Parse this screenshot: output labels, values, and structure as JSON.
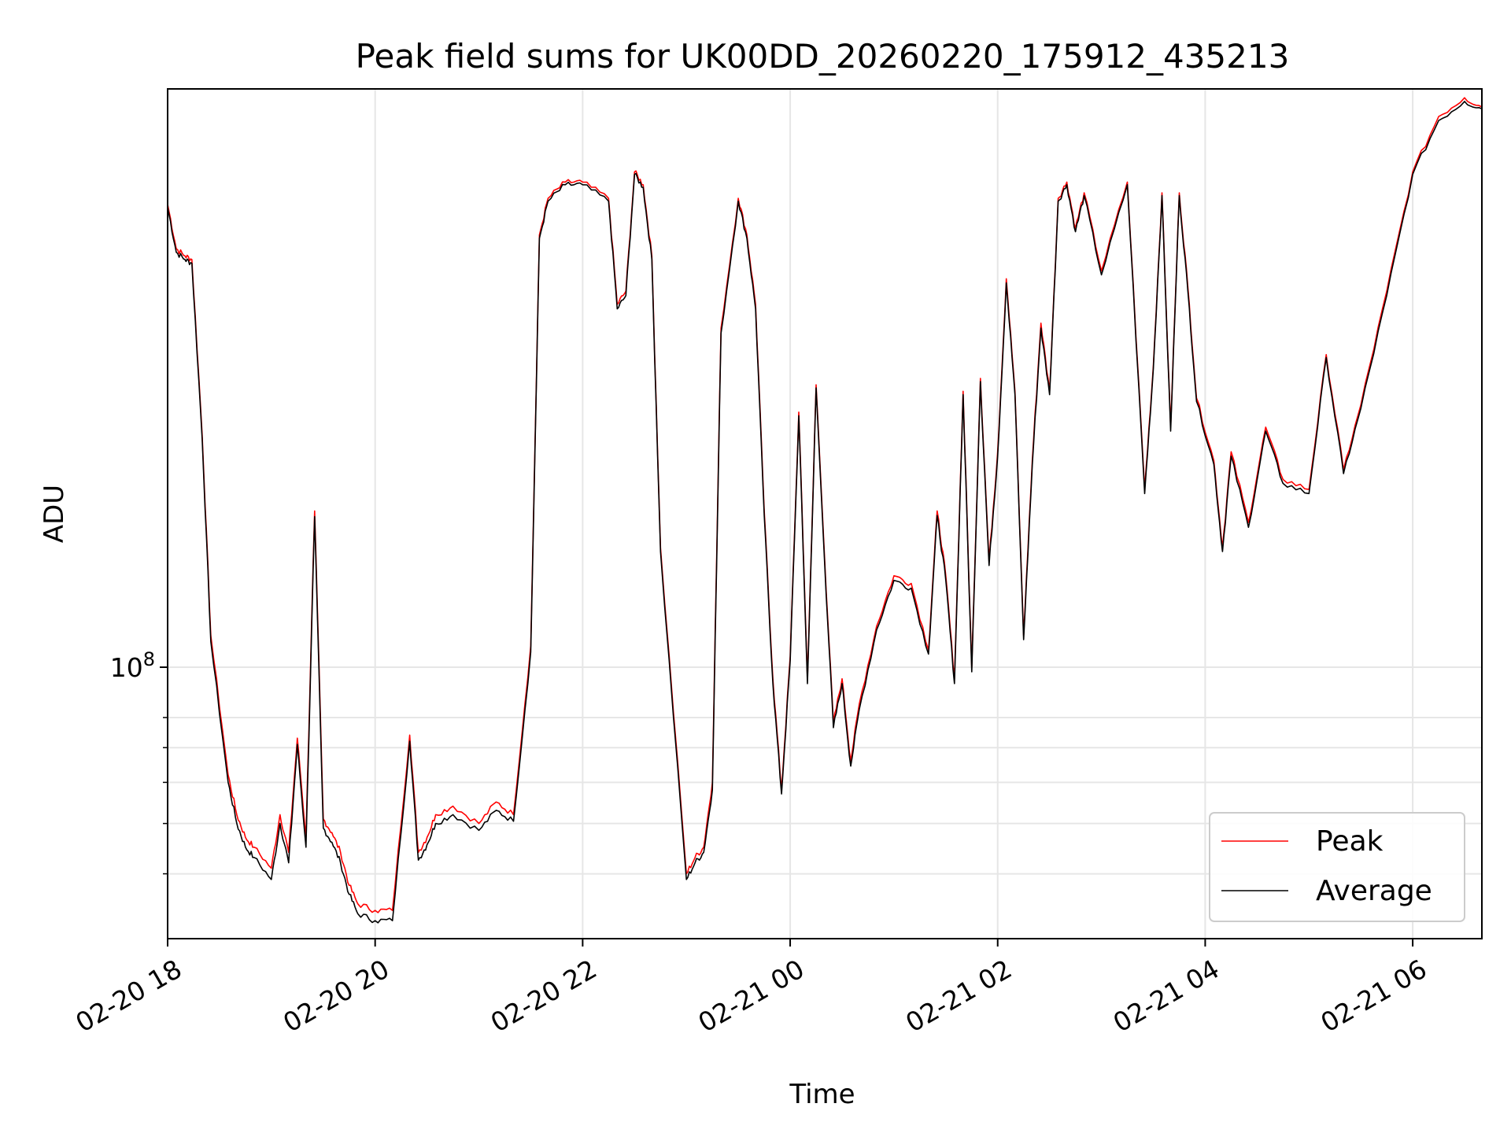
{
  "chart_data": {
    "type": "line",
    "title": "Peak field sums for UK00DD_20260220_175912_435213",
    "xlabel": "Time",
    "ylabel": "ADU",
    "yscale": "log",
    "ylim": [
      30000000,
      1300000000
    ],
    "y_major_tick": {
      "value": 100000000,
      "mantissa": "10",
      "exponent": "8"
    },
    "y_minor_ticks": [
      40000000,
      50000000,
      60000000,
      70000000,
      80000000
    ],
    "xlim": [
      "2026-02-20T18:00",
      "2026-02-21T06:40"
    ],
    "x_ticks": [
      {
        "t": "2026-02-20T18:00",
        "label": "02-20 18"
      },
      {
        "t": "2026-02-20T20:00",
        "label": "02-20 20"
      },
      {
        "t": "2026-02-20T22:00",
        "label": "02-20 22"
      },
      {
        "t": "2026-02-21T00:00",
        "label": "02-21 00"
      },
      {
        "t": "2026-02-21T02:00",
        "label": "02-21 02"
      },
      {
        "t": "2026-02-21T04:00",
        "label": "02-21 04"
      },
      {
        "t": "2026-02-21T06:00",
        "label": "02-21 06"
      }
    ],
    "grid": true,
    "legend_position": "lower-right",
    "series": [
      {
        "name": "Peak",
        "color": "#ff0000",
        "times": [
          "2026-02-20T18:00",
          "2026-02-20T18:05",
          "2026-02-20T18:10",
          "2026-02-20T18:14",
          "2026-02-20T18:20",
          "2026-02-20T18:25",
          "2026-02-20T18:35",
          "2026-02-20T18:40",
          "2026-02-20T18:45",
          "2026-02-20T18:50",
          "2026-02-20T19:00",
          "2026-02-20T19:05",
          "2026-02-20T19:10",
          "2026-02-20T19:15",
          "2026-02-20T19:20",
          "2026-02-20T19:25",
          "2026-02-20T19:30",
          "2026-02-20T19:35",
          "2026-02-20T19:40",
          "2026-02-20T19:45",
          "2026-02-20T19:50",
          "2026-02-20T20:00",
          "2026-02-20T20:10",
          "2026-02-20T20:20",
          "2026-02-20T20:25",
          "2026-02-20T20:30",
          "2026-02-20T20:35",
          "2026-02-20T20:45",
          "2026-02-20T21:00",
          "2026-02-20T21:10",
          "2026-02-20T21:20",
          "2026-02-20T21:30",
          "2026-02-20T21:35",
          "2026-02-20T21:40",
          "2026-02-20T21:50",
          "2026-02-20T22:00",
          "2026-02-20T22:15",
          "2026-02-20T22:20",
          "2026-02-20T22:25",
          "2026-02-20T22:30",
          "2026-02-20T22:35",
          "2026-02-20T22:40",
          "2026-02-20T22:45",
          "2026-02-20T23:00",
          "2026-02-20T23:05",
          "2026-02-20T23:10",
          "2026-02-20T23:15",
          "2026-02-20T23:20",
          "2026-02-20T23:30",
          "2026-02-20T23:35",
          "2026-02-20T23:40",
          "2026-02-20T23:45",
          "2026-02-20T23:50",
          "2026-02-20T23:55",
          "2026-02-21T00:00",
          "2026-02-21T00:05",
          "2026-02-21T00:10",
          "2026-02-21T00:15",
          "2026-02-21T00:20",
          "2026-02-21T00:25",
          "2026-02-21T00:30",
          "2026-02-21T00:35",
          "2026-02-21T00:40",
          "2026-02-21T00:50",
          "2026-02-21T01:00",
          "2026-02-21T01:10",
          "2026-02-21T01:20",
          "2026-02-21T01:25",
          "2026-02-21T01:30",
          "2026-02-21T01:35",
          "2026-02-21T01:40",
          "2026-02-21T01:45",
          "2026-02-21T01:50",
          "2026-02-21T01:55",
          "2026-02-21T02:00",
          "2026-02-21T02:05",
          "2026-02-21T02:10",
          "2026-02-21T02:15",
          "2026-02-21T02:20",
          "2026-02-21T02:25",
          "2026-02-21T02:30",
          "2026-02-21T02:35",
          "2026-02-21T02:40",
          "2026-02-21T02:45",
          "2026-02-21T02:50",
          "2026-02-21T03:00",
          "2026-02-21T03:15",
          "2026-02-21T03:25",
          "2026-02-21T03:30",
          "2026-02-21T03:35",
          "2026-02-21T03:40",
          "2026-02-21T03:45",
          "2026-02-21T03:50",
          "2026-02-21T03:55",
          "2026-02-21T04:05",
          "2026-02-21T04:10",
          "2026-02-21T04:15",
          "2026-02-21T04:25",
          "2026-02-21T04:35",
          "2026-02-21T04:45",
          "2026-02-21T05:00",
          "2026-02-21T05:10",
          "2026-02-21T05:20",
          "2026-02-21T05:30",
          "2026-02-21T05:45",
          "2026-02-21T06:00",
          "2026-02-21T06:15",
          "2026-02-21T06:30",
          "2026-02-21T06:40"
        ],
        "values": [
          780000000,
          640000000,
          620000000,
          610000000,
          280000000,
          115000000,
          62000000,
          52000000,
          47000000,
          45000000,
          41000000,
          52000000,
          44000000,
          73000000,
          47000000,
          200000000,
          51000000,
          48000000,
          44000000,
          38000000,
          35000000,
          34000000,
          34000000,
          74000000,
          44000000,
          47000000,
          52000000,
          54000000,
          50000000,
          55000000,
          52000000,
          110000000,
          680000000,
          800000000,
          860000000,
          860000000,
          800000000,
          500000000,
          530000000,
          900000000,
          850000000,
          620000000,
          170000000,
          40000000,
          43000000,
          45000000,
          60000000,
          450000000,
          800000000,
          680000000,
          500000000,
          200000000,
          95000000,
          58000000,
          105000000,
          310000000,
          95000000,
          350000000,
          160000000,
          78000000,
          95000000,
          66000000,
          85000000,
          120000000,
          150000000,
          145000000,
          108000000,
          200000000,
          150000000,
          95000000,
          340000000,
          100000000,
          360000000,
          160000000,
          260000000,
          560000000,
          340000000,
          115000000,
          250000000,
          460000000,
          340000000,
          800000000,
          860000000,
          700000000,
          820000000,
          580000000,
          860000000,
          220000000,
          380000000,
          820000000,
          290000000,
          820000000,
          540000000,
          330000000,
          250000000,
          170000000,
          260000000,
          190000000,
          290000000,
          230000000,
          220000000,
          400000000,
          240000000,
          320000000,
          530000000,
          900000000,
          1150000000,
          1250000000,
          1200000000
        ],
        "note": "values approximate"
      },
      {
        "name": "Average",
        "color": "#000000",
        "times": [
          "2026-02-20T18:00",
          "2026-02-20T18:05",
          "2026-02-20T18:10",
          "2026-02-20T18:14",
          "2026-02-20T18:20",
          "2026-02-20T18:25",
          "2026-02-20T18:35",
          "2026-02-20T18:40",
          "2026-02-20T18:45",
          "2026-02-20T18:50",
          "2026-02-20T19:00",
          "2026-02-20T19:05",
          "2026-02-20T19:10",
          "2026-02-20T19:15",
          "2026-02-20T19:20",
          "2026-02-20T19:25",
          "2026-02-20T19:30",
          "2026-02-20T19:35",
          "2026-02-20T19:40",
          "2026-02-20T19:45",
          "2026-02-20T19:50",
          "2026-02-20T20:00",
          "2026-02-20T20:10",
          "2026-02-20T20:20",
          "2026-02-20T20:25",
          "2026-02-20T20:30",
          "2026-02-20T20:35",
          "2026-02-20T20:45",
          "2026-02-20T21:00",
          "2026-02-20T21:10",
          "2026-02-20T21:20",
          "2026-02-20T21:30",
          "2026-02-20T21:35",
          "2026-02-20T21:40",
          "2026-02-20T21:50",
          "2026-02-20T22:00",
          "2026-02-20T22:15",
          "2026-02-20T22:20",
          "2026-02-20T22:25",
          "2026-02-20T22:30",
          "2026-02-20T22:35",
          "2026-02-20T22:40",
          "2026-02-20T22:45",
          "2026-02-20T23:00",
          "2026-02-20T23:05",
          "2026-02-20T23:10",
          "2026-02-20T23:15",
          "2026-02-20T23:20",
          "2026-02-20T23:30",
          "2026-02-20T23:35",
          "2026-02-20T23:40",
          "2026-02-20T23:45",
          "2026-02-20T23:50",
          "2026-02-20T23:55",
          "2026-02-21T00:00",
          "2026-02-21T00:05",
          "2026-02-21T00:10",
          "2026-02-21T00:15",
          "2026-02-21T00:20",
          "2026-02-21T00:25",
          "2026-02-21T00:30",
          "2026-02-21T00:35",
          "2026-02-21T00:40",
          "2026-02-21T00:50",
          "2026-02-21T01:00",
          "2026-02-21T01:10",
          "2026-02-21T01:20",
          "2026-02-21T01:25",
          "2026-02-21T01:30",
          "2026-02-21T01:35",
          "2026-02-21T01:40",
          "2026-02-21T01:45",
          "2026-02-21T01:50",
          "2026-02-21T01:55",
          "2026-02-21T02:00",
          "2026-02-21T02:05",
          "2026-02-21T02:10",
          "2026-02-21T02:15",
          "2026-02-21T02:20",
          "2026-02-21T02:25",
          "2026-02-21T02:30",
          "2026-02-21T02:35",
          "2026-02-21T02:40",
          "2026-02-21T02:45",
          "2026-02-21T02:50",
          "2026-02-21T03:00",
          "2026-02-21T03:15",
          "2026-02-21T03:25",
          "2026-02-21T03:30",
          "2026-02-21T03:35",
          "2026-02-21T03:40",
          "2026-02-21T03:45",
          "2026-02-21T03:50",
          "2026-02-21T03:55",
          "2026-02-21T04:05",
          "2026-02-21T04:10",
          "2026-02-21T04:15",
          "2026-02-21T04:25",
          "2026-02-21T04:35",
          "2026-02-21T04:45",
          "2026-02-21T05:00",
          "2026-02-21T05:10",
          "2026-02-21T05:20",
          "2026-02-21T05:30",
          "2026-02-21T05:45",
          "2026-02-21T06:00",
          "2026-02-21T06:15",
          "2026-02-21T06:30",
          "2026-02-21T06:40"
        ],
        "values": [
          770000000,
          630000000,
          610000000,
          600000000,
          275000000,
          112000000,
          60000000,
          50000000,
          45000000,
          43000000,
          39000000,
          50000000,
          42000000,
          71000000,
          45000000,
          195000000,
          49000000,
          46000000,
          42000000,
          36500000,
          33500000,
          32500000,
          32500000,
          72000000,
          42500000,
          45500000,
          50000000,
          52000000,
          48500000,
          53000000,
          50500000,
          107000000,
          670000000,
          790000000,
          850000000,
          850000000,
          790000000,
          490000000,
          520000000,
          890000000,
          840000000,
          610000000,
          167000000,
          39000000,
          42000000,
          44000000,
          58000000,
          440000000,
          790000000,
          670000000,
          490000000,
          196000000,
          93000000,
          57000000,
          103000000,
          305000000,
          93000000,
          345000000,
          157000000,
          76500000,
          93000000,
          64500000,
          83000000,
          118000000,
          147000000,
          142000000,
          106000000,
          196000000,
          147000000,
          93000000,
          335000000,
          98000000,
          355000000,
          157000000,
          255000000,
          550000000,
          335000000,
          113000000,
          245000000,
          450000000,
          335000000,
          790000000,
          850000000,
          690000000,
          810000000,
          570000000,
          850000000,
          216000000,
          375000000,
          810000000,
          285000000,
          810000000,
          530000000,
          325000000,
          246000000,
          167000000,
          255000000,
          186000000,
          285000000,
          226000000,
          216000000,
          395000000,
          236000000,
          315000000,
          520000000,
          890000000,
          1130000000,
          1230000000,
          1190000000
        ],
        "note": "values approximate"
      }
    ]
  }
}
